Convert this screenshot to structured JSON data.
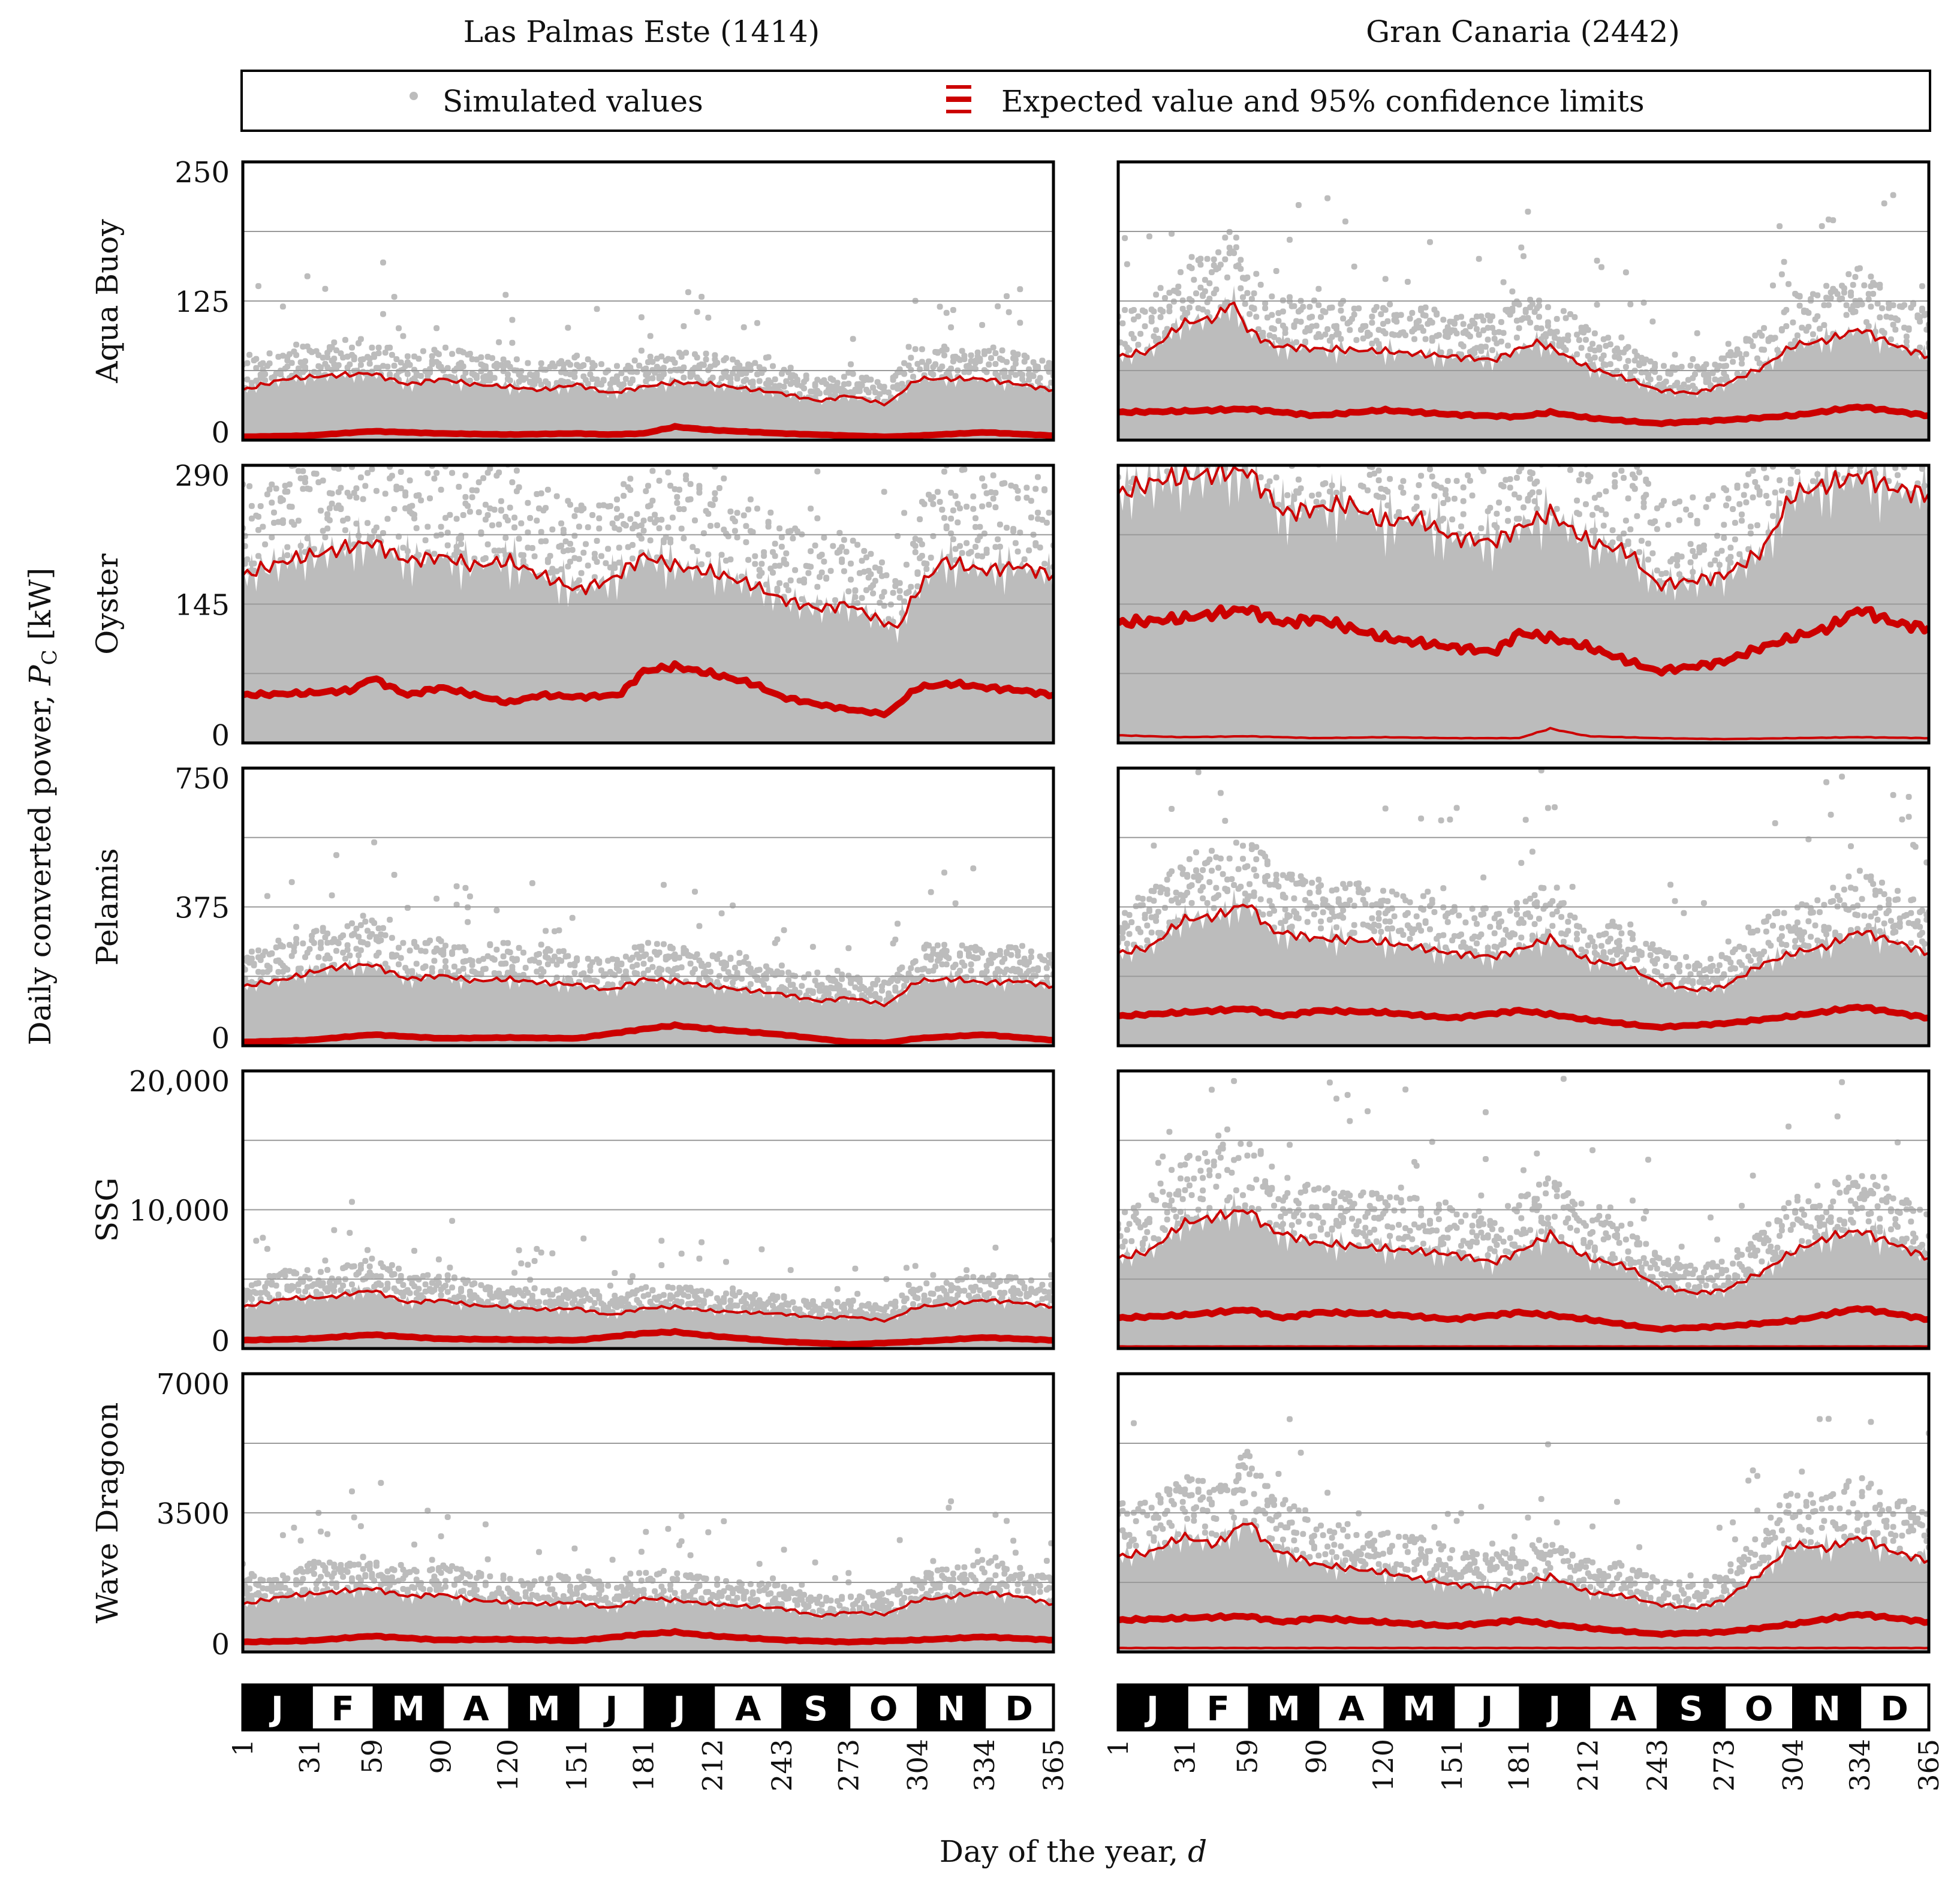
{
  "columns": [
    "Las Palmas Este (1414)",
    "Gran Canaria (2442)"
  ],
  "legend": {
    "simulated": "Simulated values",
    "expected": "Expected value and 95% confidence limits"
  },
  "y_axis_label": "Daily converted power,",
  "y_axis_symbol": "P",
  "y_axis_subscript": "C",
  "y_axis_unit": " [kW]",
  "x_axis_label": "Day of the year,",
  "x_axis_symbol": "d",
  "months": [
    "J",
    "F",
    "M",
    "A",
    "M",
    "J",
    "J",
    "A",
    "S",
    "O",
    "N",
    "D"
  ],
  "day_ticks": [
    "1",
    "31",
    "59",
    "90",
    "120",
    "151",
    "181",
    "212",
    "243",
    "273",
    "304",
    "334",
    "365"
  ],
  "colors": {
    "simulated": "#bcbcbc",
    "expected": "#cc0000",
    "grid": "#9a9a9a"
  },
  "chart_data": [
    {
      "type": "scatter",
      "device": "Aqua Buoy",
      "location": "Las Palmas Este (1414)",
      "ylim": [
        0,
        250
      ],
      "yticks": [
        "0",
        "125",
        "250"
      ],
      "series": [
        {
          "name": "Expected value",
          "x": [
            1,
            30,
            59,
            90,
            120,
            151,
            165,
            181,
            195,
            212,
            243,
            273,
            290,
            304,
            334,
            365
          ],
          "y": [
            3,
            4,
            8,
            6,
            5,
            6,
            5,
            6,
            12,
            9,
            6,
            4,
            3,
            4,
            7,
            4
          ]
        },
        {
          "name": "Upper 95% confidence limit",
          "x": [
            1,
            20,
            40,
            59,
            75,
            90,
            105,
            120,
            135,
            151,
            166,
            181,
            195,
            212,
            243,
            260,
            273,
            290,
            304,
            320,
            334,
            350,
            365
          ],
          "y": [
            45,
            55,
            58,
            60,
            50,
            55,
            50,
            48,
            45,
            50,
            42,
            48,
            52,
            50,
            42,
            35,
            40,
            32,
            55,
            55,
            55,
            50,
            45
          ]
        }
      ]
    },
    {
      "type": "scatter",
      "device": "Aqua Buoy",
      "location": "Gran Canaria (2442)",
      "ylim": [
        0,
        250
      ],
      "yticks": [
        "",
        "",
        ""
      ],
      "series": [
        {
          "name": "Expected value",
          "x": [
            1,
            30,
            59,
            90,
            120,
            151,
            181,
            195,
            212,
            243,
            273,
            304,
            334,
            365
          ],
          "y": [
            25,
            26,
            28,
            22,
            27,
            23,
            21,
            25,
            20,
            15,
            18,
            22,
            30,
            22
          ]
        },
        {
          "name": "Upper 95% confidence limit",
          "x": [
            1,
            15,
            30,
            45,
            52,
            59,
            70,
            90,
            120,
            151,
            170,
            181,
            190,
            200,
            212,
            230,
            243,
            260,
            273,
            290,
            304,
            320,
            334,
            350,
            365
          ],
          "y": [
            75,
            80,
            105,
            110,
            125,
            100,
            85,
            82,
            80,
            75,
            72,
            82,
            88,
            78,
            65,
            55,
            45,
            42,
            50,
            65,
            85,
            90,
            100,
            85,
            75
          ]
        }
      ]
    },
    {
      "type": "scatter",
      "device": "Oyster",
      "location": "Las Palmas Este (1414)",
      "ylim": [
        0,
        290
      ],
      "yticks": [
        "0",
        "145",
        "290"
      ],
      "series": [
        {
          "name": "Expected value",
          "x": [
            1,
            30,
            50,
            59,
            75,
            90,
            105,
            120,
            135,
            151,
            170,
            181,
            195,
            212,
            230,
            243,
            260,
            273,
            290,
            304,
            320,
            334,
            350,
            365
          ],
          "y": [
            50,
            52,
            55,
            68,
            50,
            58,
            50,
            42,
            50,
            48,
            50,
            75,
            80,
            72,
            62,
            48,
            40,
            35,
            30,
            58,
            62,
            58,
            55,
            50
          ]
        },
        {
          "name": "Upper 95% confidence limit",
          "x": [
            1,
            20,
            40,
            59,
            75,
            90,
            105,
            120,
            135,
            151,
            166,
            181,
            195,
            212,
            230,
            243,
            260,
            273,
            285,
            295,
            304,
            315,
            334,
            350,
            365
          ],
          "y": [
            175,
            190,
            200,
            210,
            190,
            195,
            185,
            190,
            175,
            160,
            170,
            195,
            185,
            178,
            165,
            150,
            140,
            145,
            130,
            120,
            160,
            190,
            180,
            185,
            175
          ]
        }
      ]
    },
    {
      "type": "scatter",
      "device": "Oyster",
      "location": "Gran Canaria (2442)",
      "ylim": [
        0,
        290
      ],
      "yticks": [
        "",
        "",
        ""
      ],
      "series": [
        {
          "name": "Expected value",
          "x": [
            1,
            30,
            59,
            75,
            90,
            120,
            151,
            170,
            181,
            195,
            212,
            243,
            260,
            273,
            290,
            304,
            320,
            334,
            350,
            365
          ],
          "y": [
            125,
            130,
            140,
            125,
            130,
            110,
            100,
            95,
            115,
            110,
            100,
            75,
            80,
            85,
            100,
            110,
            120,
            140,
            125,
            120
          ]
        },
        {
          "name": "Upper 95% confidence limit",
          "x": [
            1,
            20,
            40,
            59,
            75,
            90,
            105,
            120,
            135,
            151,
            170,
            181,
            195,
            212,
            230,
            243,
            260,
            273,
            290,
            304,
            320,
            334,
            350,
            365
          ],
          "y": [
            260,
            275,
            280,
            285,
            240,
            245,
            250,
            230,
            235,
            215,
            210,
            225,
            240,
            210,
            200,
            165,
            170,
            175,
            200,
            260,
            270,
            280,
            265,
            260
          ]
        },
        {
          "name": "Lower 95% confidence limit",
          "x": [
            1,
            30,
            59,
            90,
            120,
            151,
            181,
            195,
            212,
            243,
            273,
            304,
            334,
            365
          ],
          "y": [
            8,
            6,
            7,
            5,
            6,
            5,
            5,
            15,
            7,
            5,
            4,
            5,
            6,
            5
          ]
        }
      ]
    },
    {
      "type": "scatter",
      "device": "Pelamis",
      "location": "Las Palmas Este (1414)",
      "ylim": [
        0,
        750
      ],
      "yticks": [
        "0",
        "375",
        "750"
      ],
      "series": [
        {
          "name": "Expected value",
          "x": [
            1,
            30,
            59,
            90,
            120,
            151,
            181,
            195,
            212,
            243,
            273,
            290,
            304,
            334,
            365
          ],
          "y": [
            10,
            15,
            30,
            20,
            22,
            20,
            45,
            55,
            45,
            30,
            10,
            8,
            20,
            30,
            15
          ]
        },
        {
          "name": "Upper 95% confidence limit",
          "x": [
            1,
            20,
            40,
            59,
            75,
            90,
            105,
            120,
            135,
            151,
            166,
            181,
            195,
            212,
            243,
            260,
            273,
            290,
            304,
            320,
            334,
            350,
            365
          ],
          "y": [
            160,
            180,
            210,
            220,
            180,
            190,
            175,
            180,
            170,
            165,
            150,
            180,
            175,
            160,
            140,
            120,
            130,
            110,
            175,
            180,
            170,
            175,
            160
          ]
        }
      ]
    },
    {
      "type": "scatter",
      "device": "Pelamis",
      "location": "Gran Canaria (2442)",
      "ylim": [
        0,
        750
      ],
      "yticks": [
        "",
        "",
        ""
      ],
      "series": [
        {
          "name": "Expected value",
          "x": [
            1,
            30,
            59,
            75,
            90,
            120,
            151,
            181,
            195,
            212,
            243,
            273,
            304,
            334,
            365
          ],
          "y": [
            80,
            90,
            100,
            80,
            95,
            90,
            75,
            95,
            85,
            70,
            50,
            60,
            80,
            105,
            75
          ]
        },
        {
          "name": "Upper 95% confidence limit",
          "x": [
            1,
            15,
            30,
            45,
            59,
            70,
            90,
            120,
            151,
            170,
            181,
            195,
            212,
            230,
            243,
            260,
            273,
            290,
            304,
            320,
            334,
            350,
            365
          ],
          "y": [
            250,
            265,
            340,
            350,
            385,
            310,
            290,
            280,
            250,
            240,
            260,
            290,
            230,
            215,
            170,
            150,
            160,
            220,
            250,
            270,
            310,
            280,
            250
          ]
        }
      ]
    },
    {
      "type": "scatter",
      "device": "SSG",
      "location": "Las Palmas Este (1414)",
      "ylim": [
        0,
        20000
      ],
      "yticks": [
        "0",
        "10,000",
        "20,000"
      ],
      "series": [
        {
          "name": "Expected value",
          "x": [
            1,
            30,
            59,
            90,
            120,
            151,
            181,
            195,
            212,
            243,
            273,
            304,
            334,
            365
          ],
          "y": [
            600,
            700,
            1000,
            700,
            650,
            600,
            1100,
            1200,
            900,
            500,
            300,
            500,
            800,
            600
          ]
        },
        {
          "name": "Upper 95% confidence limit",
          "x": [
            1,
            20,
            40,
            59,
            75,
            90,
            105,
            120,
            135,
            151,
            166,
            181,
            195,
            212,
            243,
            260,
            273,
            290,
            304,
            320,
            334,
            350,
            365
          ],
          "y": [
            3000,
            3600,
            3700,
            4200,
            3300,
            3500,
            3100,
            3000,
            2800,
            2900,
            2400,
            2900,
            3000,
            2700,
            2500,
            2200,
            2300,
            2000,
            3000,
            3200,
            3500,
            3300,
            3000
          ]
        }
      ]
    },
    {
      "type": "scatter",
      "device": "SSG",
      "location": "Gran Canaria (2442)",
      "ylim": [
        0,
        20000
      ],
      "yticks": [
        "",
        "",
        ""
      ],
      "series": [
        {
          "name": "Expected value",
          "x": [
            1,
            30,
            59,
            75,
            90,
            120,
            151,
            181,
            195,
            212,
            243,
            273,
            304,
            334,
            365
          ],
          "y": [
            2200,
            2400,
            2800,
            2200,
            2600,
            2500,
            2100,
            2600,
            2400,
            2100,
            1400,
            1600,
            2000,
            2900,
            2100
          ]
        },
        {
          "name": "Upper 95% confidence limit",
          "x": [
            1,
            15,
            30,
            45,
            59,
            70,
            90,
            120,
            151,
            170,
            181,
            195,
            212,
            230,
            243,
            260,
            273,
            290,
            304,
            320,
            334,
            350,
            365
          ],
          "y": [
            6500,
            7000,
            9000,
            9500,
            10000,
            8500,
            7600,
            7200,
            6800,
            6200,
            7000,
            8200,
            6500,
            5900,
            4500,
            4000,
            4200,
            5500,
            7000,
            8000,
            8500,
            7500,
            6500
          ]
        },
        {
          "name": "Lower 95% confidence limit",
          "x": [
            1,
            365
          ],
          "y": [
            150,
            150
          ]
        }
      ]
    },
    {
      "type": "scatter",
      "device": "Wave Dragoon",
      "location": "Las Palmas Este (1414)",
      "ylim": [
        0,
        7000
      ],
      "yticks": [
        "0",
        "3500",
        "7000"
      ],
      "series": [
        {
          "name": "Expected value",
          "x": [
            1,
            30,
            59,
            90,
            120,
            151,
            181,
            195,
            212,
            243,
            273,
            304,
            334,
            365
          ],
          "y": [
            250,
            280,
            400,
            300,
            320,
            280,
            450,
            500,
            400,
            300,
            250,
            300,
            380,
            300
          ]
        },
        {
          "name": "Upper 95% confidence limit",
          "x": [
            1,
            20,
            40,
            59,
            75,
            90,
            105,
            120,
            135,
            151,
            166,
            181,
            195,
            212,
            243,
            260,
            273,
            290,
            304,
            320,
            334,
            350,
            365
          ],
          "y": [
            1200,
            1400,
            1500,
            1600,
            1400,
            1450,
            1300,
            1250,
            1200,
            1250,
            1100,
            1350,
            1300,
            1200,
            1100,
            900,
            1000,
            950,
            1300,
            1400,
            1500,
            1400,
            1200
          ]
        }
      ]
    },
    {
      "type": "scatter",
      "device": "Wave Dragoon",
      "location": "Gran Canaria (2442)",
      "ylim": [
        0,
        7000
      ],
      "yticks": [
        "",
        "",
        ""
      ],
      "series": [
        {
          "name": "Expected value",
          "x": [
            1,
            30,
            59,
            75,
            90,
            120,
            151,
            181,
            195,
            212,
            243,
            273,
            304,
            334,
            365
          ],
          "y": [
            800,
            850,
            900,
            750,
            850,
            750,
            650,
            800,
            700,
            600,
            450,
            500,
            700,
            950,
            750
          ]
        },
        {
          "name": "Upper 95% confidence limit",
          "x": [
            1,
            15,
            30,
            45,
            59,
            70,
            90,
            120,
            151,
            170,
            181,
            195,
            212,
            230,
            243,
            260,
            273,
            290,
            304,
            320,
            334,
            350,
            365
          ],
          "y": [
            2400,
            2500,
            2900,
            2700,
            3300,
            2600,
            2200,
            2000,
            1700,
            1600,
            1700,
            1900,
            1500,
            1400,
            1200,
            1100,
            1300,
            2000,
            2700,
            2600,
            2900,
            2500,
            2300
          ]
        },
        {
          "name": "Lower 95% confidence limit",
          "x": [
            1,
            365
          ],
          "y": [
            100,
            100
          ]
        }
      ]
    }
  ]
}
